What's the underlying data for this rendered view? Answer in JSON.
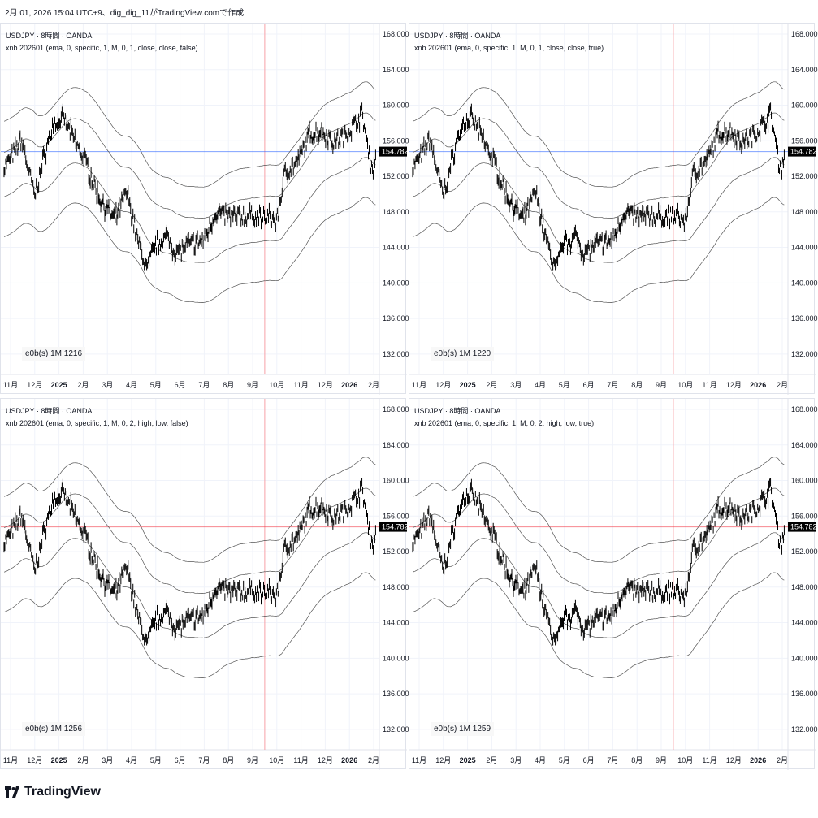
{
  "header": "2月 01, 2026 15:04 UTC+9、dig_dig_11がTradingView.comで作成",
  "logo": "TradingView",
  "panels": [
    {
      "symbol": "USDJPY · 8時間 · OANDA",
      "indicator": "xnb 202601 (ema, 0, specific, 1, M, 0, 1, close, close, false)",
      "counter": "e0b(s)  1M 1216",
      "hline_color": "#2962ff"
    },
    {
      "symbol": "USDJPY · 8時間 · OANDA",
      "indicator": "xnb 202601 (ema, 0, specific, 1, M, 0, 1, close, close, true)",
      "counter": "e0b(s)  1M 1220",
      "hline_color": "#2962ff"
    },
    {
      "symbol": "USDJPY · 8時間 · OANDA",
      "indicator": "xnb 202601 (ema, 0, specific, 1, M, 0, 2, high, low, false)",
      "counter": "e0b(s)  1M 1256",
      "hline_color": "#f23645"
    },
    {
      "symbol": "USDJPY · 8時間 · OANDA",
      "indicator": "xnb 202601 (ema, 0, specific, 1, M, 0, 2, high, low, true)",
      "counter": "e0b(s)  1M 1259",
      "hline_color": "#f23645"
    }
  ],
  "chart_data": {
    "type": "line",
    "title": "USDJPY · 8時間 · OANDA",
    "last_price": "154.782",
    "ylim": [
      130,
      169
    ],
    "yticks": [
      "168.000",
      "164.000",
      "160.000",
      "156.000",
      "152.000",
      "148.000",
      "144.000",
      "140.000",
      "136.000",
      "132.000"
    ],
    "xticks": [
      {
        "m": 0,
        "label": "11月"
      },
      {
        "m": 1,
        "label": "12月"
      },
      {
        "m": 2,
        "label": "2025",
        "bold": true
      },
      {
        "m": 3,
        "label": "2月"
      },
      {
        "m": 4,
        "label": "3月"
      },
      {
        "m": 5,
        "label": "4月"
      },
      {
        "m": 6,
        "label": "5月"
      },
      {
        "m": 7,
        "label": "6月"
      },
      {
        "m": 8,
        "label": "7月"
      },
      {
        "m": 9,
        "label": "8月"
      },
      {
        "m": 10,
        "label": "9月"
      },
      {
        "m": 11,
        "label": "10月"
      },
      {
        "m": 12,
        "label": "11月"
      },
      {
        "m": 13,
        "label": "12月"
      },
      {
        "m": 14,
        "label": "2026",
        "bold": true
      },
      {
        "m": 15,
        "label": "2月"
      }
    ],
    "x_unit": "months since 2024-11-01",
    "vline_month": 10.5,
    "band_offsets": [
      6,
      2.5,
      -2.5,
      -7
    ],
    "close": [
      [
        -0.27,
        153
      ],
      [
        0.1,
        154.4
      ],
      [
        0.44,
        156.2
      ],
      [
        1.0,
        149.8
      ],
      [
        1.44,
        154.8
      ],
      [
        1.78,
        158
      ],
      [
        2.21,
        158.5
      ],
      [
        2.62,
        156.2
      ],
      [
        3.12,
        153.5
      ],
      [
        3.62,
        149.8
      ],
      [
        4.3,
        147
      ],
      [
        4.8,
        150.3
      ],
      [
        5.3,
        144.3
      ],
      [
        5.64,
        141.6
      ],
      [
        5.97,
        144.3
      ],
      [
        6.48,
        145.2
      ],
      [
        6.81,
        143.4
      ],
      [
        7.31,
        144.3
      ],
      [
        7.98,
        144.8
      ],
      [
        8.49,
        148
      ],
      [
        8.99,
        147.5
      ],
      [
        9.66,
        147.5
      ],
      [
        10.5,
        147.5
      ],
      [
        11.0,
        147
      ],
      [
        11.34,
        152.5
      ],
      [
        11.85,
        153.5
      ],
      [
        12.35,
        156.7
      ],
      [
        12.85,
        157.1
      ],
      [
        13.36,
        155.8
      ],
      [
        13.86,
        156.7
      ],
      [
        14.53,
        159
      ],
      [
        14.87,
        153.5
      ],
      [
        14.97,
        152.5
      ],
      [
        15.1,
        154.8
      ]
    ]
  }
}
